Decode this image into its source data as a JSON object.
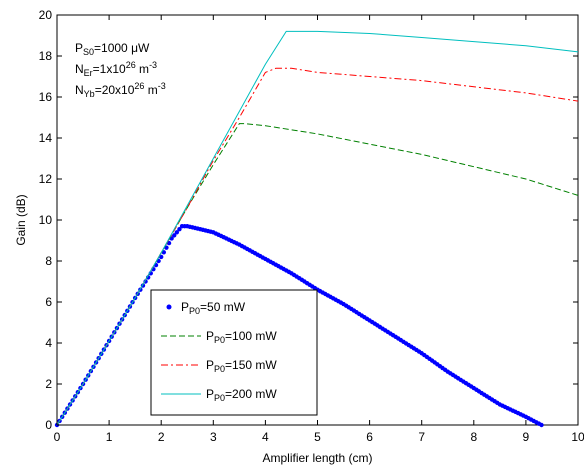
{
  "chart_data": {
    "type": "line",
    "xlabel": "Amplifier length (cm)",
    "ylabel": "Gain (dB)",
    "xlim": [
      0,
      10
    ],
    "ylim": [
      0,
      20
    ],
    "xticks": [
      0,
      1,
      2,
      3,
      4,
      5,
      6,
      7,
      8,
      9,
      10
    ],
    "yticks": [
      0,
      2,
      4,
      6,
      8,
      10,
      12,
      14,
      16,
      18,
      20
    ],
    "grid": false,
    "legend_position": "bottom-center",
    "annotation": [
      {
        "base": "P",
        "sub": "S0",
        "tail": "=1000 μW"
      },
      {
        "base": "N",
        "sub": "Er",
        "tail": "=1x10",
        "sup": "26",
        "unit": " m",
        "unit_sup": "-3"
      },
      {
        "base": "N",
        "sub": "Yb",
        "tail": "=20x10",
        "sup": "26",
        "unit": " m",
        "unit_sup": "-3"
      }
    ],
    "series": [
      {
        "legend": {
          "base": "P",
          "sub": "P0",
          "tail": "=50 mW"
        },
        "color": "#0000ff",
        "style": "dots",
        "x": [
          0,
          0.5,
          1.0,
          1.5,
          2.0,
          2.2,
          2.4,
          2.5,
          3.0,
          3.5,
          4.0,
          4.5,
          5.0,
          5.5,
          6.0,
          6.5,
          7.0,
          7.5,
          8.0,
          8.5,
          9.0,
          9.3
        ],
        "y": [
          0,
          2.0,
          4.1,
          6.2,
          8.2,
          9.1,
          9.7,
          9.7,
          9.4,
          8.8,
          8.1,
          7.4,
          6.6,
          5.9,
          5.1,
          4.3,
          3.5,
          2.6,
          1.8,
          1.0,
          0.4,
          0
        ]
      },
      {
        "legend": {
          "base": "P",
          "sub": "P0",
          "tail": "=100 mW"
        },
        "color": "#008000",
        "style": "dashed",
        "x": [
          0,
          0.5,
          1.0,
          1.5,
          2.0,
          2.5,
          3.0,
          3.5,
          3.6,
          4.0,
          5.0,
          6.0,
          7.0,
          8.0,
          9.0,
          10.0
        ],
        "y": [
          0,
          2.0,
          4.1,
          6.2,
          8.4,
          10.6,
          12.7,
          14.7,
          14.7,
          14.6,
          14.2,
          13.7,
          13.2,
          12.6,
          12.0,
          11.2
        ]
      },
      {
        "legend": {
          "base": "P",
          "sub": "P0",
          "tail": "=150 mW"
        },
        "color": "#ff0000",
        "style": "dashdot",
        "x": [
          0,
          0.5,
          1.0,
          1.5,
          2.0,
          2.5,
          3.0,
          3.5,
          4.0,
          4.2,
          4.5,
          5.0,
          6.0,
          7.0,
          8.0,
          9.0,
          10.0
        ],
        "y": [
          0,
          2.0,
          4.1,
          6.2,
          8.4,
          10.6,
          12.9,
          15.0,
          17.2,
          17.4,
          17.4,
          17.2,
          17.0,
          16.8,
          16.5,
          16.2,
          15.8
        ]
      },
      {
        "legend": {
          "base": "P",
          "sub": "P0",
          "tail": "=200 mW"
        },
        "color": "#00bfbf",
        "style": "solid",
        "x": [
          0,
          0.5,
          1.0,
          1.5,
          2.0,
          2.5,
          3.0,
          3.5,
          4.0,
          4.4,
          5.0,
          6.0,
          7.0,
          8.0,
          9.0,
          10.0
        ],
        "y": [
          0,
          2.0,
          4.1,
          6.2,
          8.4,
          10.7,
          13.0,
          15.3,
          17.6,
          19.2,
          19.2,
          19.1,
          18.9,
          18.7,
          18.5,
          18.2
        ]
      }
    ]
  }
}
